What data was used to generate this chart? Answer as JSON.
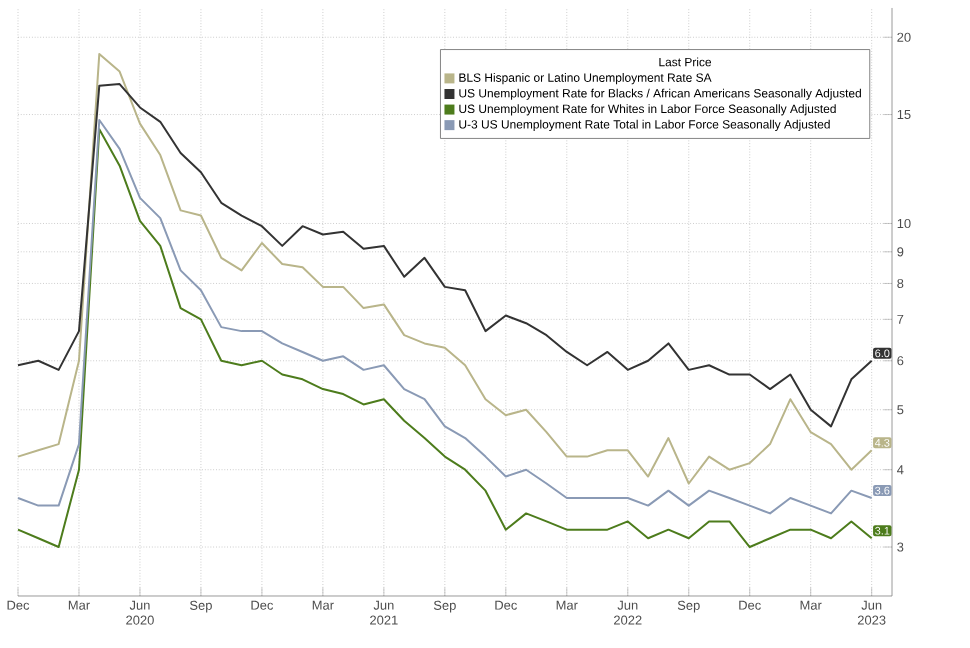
{
  "chart_data": {
    "type": "line",
    "legend_title": "Last Price",
    "x": [
      "2019-12",
      "2020-01",
      "2020-02",
      "2020-03",
      "2020-04",
      "2020-05",
      "2020-06",
      "2020-07",
      "2020-08",
      "2020-09",
      "2020-10",
      "2020-11",
      "2020-12",
      "2021-01",
      "2021-02",
      "2021-03",
      "2021-04",
      "2021-05",
      "2021-06",
      "2021-07",
      "2021-08",
      "2021-09",
      "2021-10",
      "2021-11",
      "2021-12",
      "2022-01",
      "2022-02",
      "2022-03",
      "2022-04",
      "2022-05",
      "2022-06",
      "2022-07",
      "2022-08",
      "2022-09",
      "2022-10",
      "2022-11",
      "2022-12",
      "2023-01",
      "2023-02",
      "2023-03",
      "2023-04",
      "2023-05",
      "2023-06"
    ],
    "series": [
      {
        "name": "BLS Hispanic or Latino Unemployment Rate SA",
        "color": "#b9b58a",
        "values": [
          4.2,
          4.3,
          4.4,
          6.0,
          18.8,
          17.6,
          14.5,
          12.9,
          10.5,
          10.3,
          8.8,
          8.4,
          9.3,
          8.6,
          8.5,
          7.9,
          7.9,
          7.3,
          7.4,
          6.6,
          6.4,
          6.3,
          5.9,
          5.2,
          4.9,
          5.0,
          4.6,
          4.2,
          4.2,
          4.3,
          4.3,
          3.9,
          4.5,
          3.8,
          4.2,
          4.0,
          4.1,
          4.4,
          5.2,
          4.6,
          4.4,
          4.0,
          4.3
        ],
        "value_labels": [
          null,
          null,
          null,
          null,
          null,
          null,
          null,
          null,
          null,
          null,
          null,
          null,
          null,
          null,
          null,
          null,
          null,
          null,
          null,
          null,
          null,
          null,
          null,
          null,
          null,
          null,
          null,
          null,
          null,
          null,
          null,
          null,
          null,
          null,
          null,
          null,
          null,
          null,
          null,
          null,
          null,
          null,
          "4.3"
        ]
      },
      {
        "name": "US Unemployment Rate for Blacks / African Americans Seasonally Adjusted",
        "color": "#333333",
        "values": [
          5.9,
          6.0,
          5.8,
          6.7,
          16.7,
          16.8,
          15.4,
          14.6,
          13.0,
          12.1,
          10.8,
          10.3,
          9.9,
          9.2,
          9.9,
          9.6,
          9.7,
          9.1,
          9.2,
          8.2,
          8.8,
          7.9,
          7.8,
          6.7,
          7.1,
          6.9,
          6.6,
          6.2,
          5.9,
          6.2,
          5.8,
          6.0,
          6.4,
          5.8,
          5.9,
          5.7,
          5.7,
          5.4,
          5.7,
          5.0,
          4.7,
          5.6,
          6.0
        ],
        "value_labels": [
          null,
          null,
          null,
          null,
          null,
          null,
          null,
          null,
          null,
          null,
          null,
          null,
          null,
          null,
          null,
          null,
          null,
          null,
          null,
          null,
          null,
          null,
          null,
          null,
          null,
          null,
          null,
          null,
          null,
          null,
          null,
          null,
          null,
          null,
          null,
          null,
          null,
          null,
          null,
          null,
          null,
          null,
          "6.0"
        ]
      },
      {
        "name": "US Unemployment Rate for Whites in Labor Force Seasonally Adjusted",
        "color": "#4d7c1c",
        "values": [
          3.2,
          3.1,
          3.0,
          4.0,
          14.2,
          12.4,
          10.1,
          9.2,
          7.3,
          7.0,
          6.0,
          5.9,
          6.0,
          5.7,
          5.6,
          5.4,
          5.3,
          5.1,
          5.2,
          4.8,
          4.5,
          4.2,
          4.0,
          3.7,
          3.2,
          3.4,
          3.3,
          3.2,
          3.2,
          3.2,
          3.3,
          3.1,
          3.2,
          3.1,
          3.3,
          3.3,
          3.0,
          3.1,
          3.2,
          3.2,
          3.1,
          3.3,
          3.1
        ],
        "value_labels": [
          null,
          null,
          null,
          null,
          null,
          null,
          null,
          null,
          null,
          null,
          null,
          null,
          null,
          null,
          null,
          null,
          null,
          null,
          null,
          null,
          null,
          null,
          null,
          null,
          null,
          null,
          null,
          null,
          null,
          null,
          null,
          null,
          null,
          null,
          null,
          null,
          null,
          null,
          null,
          null,
          null,
          null,
          "3.1"
        ]
      },
      {
        "name": "U-3 US Unemployment Rate Total in Labor Force Seasonally Adjusted",
        "color": "#8a9ab5",
        "values": [
          3.6,
          3.5,
          3.5,
          4.4,
          14.7,
          13.2,
          11.0,
          10.2,
          8.4,
          7.8,
          6.8,
          6.7,
          6.7,
          6.4,
          6.2,
          6.0,
          6.1,
          5.8,
          5.9,
          5.4,
          5.2,
          4.7,
          4.5,
          4.2,
          3.9,
          4.0,
          3.8,
          3.6,
          3.6,
          3.6,
          3.6,
          3.5,
          3.7,
          3.5,
          3.7,
          3.6,
          3.5,
          3.4,
          3.6,
          3.5,
          3.4,
          3.7,
          3.6
        ],
        "value_labels": [
          null,
          null,
          null,
          null,
          null,
          null,
          null,
          null,
          null,
          null,
          null,
          null,
          null,
          null,
          null,
          null,
          null,
          null,
          null,
          null,
          null,
          null,
          null,
          null,
          null,
          null,
          null,
          null,
          null,
          null,
          null,
          null,
          null,
          null,
          null,
          null,
          null,
          null,
          null,
          null,
          null,
          null,
          "3.6"
        ]
      }
    ],
    "xlim": [
      "2019-12",
      "2023-07"
    ],
    "xticks": [
      {
        "value": "2019-12",
        "label": "Dec"
      },
      {
        "value": "2020-03",
        "label": "Mar"
      },
      {
        "value": "2020-06",
        "label": "Jun 2020"
      },
      {
        "value": "2020-09",
        "label": "Sep"
      },
      {
        "value": "2020-12",
        "label": "Dec"
      },
      {
        "value": "2021-03",
        "label": "Mar"
      },
      {
        "value": "2021-06",
        "label": "Jun 2021"
      },
      {
        "value": "2021-09",
        "label": "Sep"
      },
      {
        "value": "2021-12",
        "label": "Dec"
      },
      {
        "value": "2022-03",
        "label": "Mar"
      },
      {
        "value": "2022-06",
        "label": "Jun 2022"
      },
      {
        "value": "2022-09",
        "label": "Sep"
      },
      {
        "value": "2022-12",
        "label": "Dec"
      },
      {
        "value": "2023-03",
        "label": "Mar"
      },
      {
        "value": "2023-06",
        "label": "Jun 2023"
      }
    ],
    "ylim": [
      2.5,
      22.3
    ],
    "yticks": [
      3,
      4,
      5,
      6,
      7,
      8,
      9,
      10,
      15,
      20
    ],
    "log": "y",
    "grid": true,
    "legend": "top right",
    "marker": "none",
    "line_style": "solid"
  }
}
